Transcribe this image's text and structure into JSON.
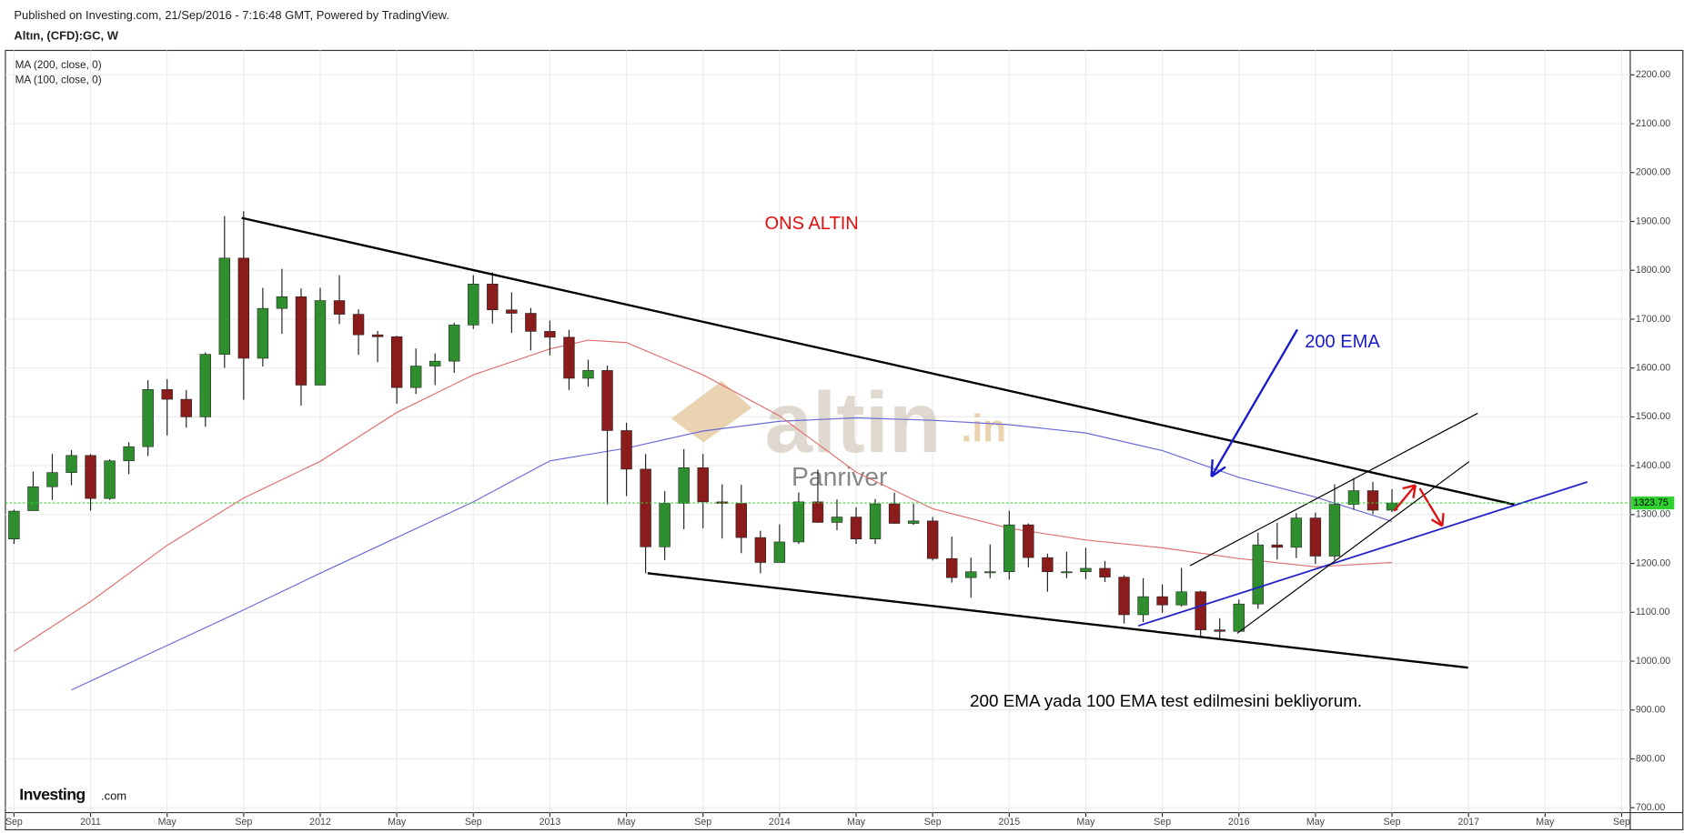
{
  "header": {
    "published": "Published on Investing.com, 21/Sep/2016 - 7:16:48 GMT, Powered by TradingView.",
    "symbol": "Altın, (CFD):GC, W"
  },
  "chart_data": {
    "type": "candlestick",
    "legend": [
      "MA (200, close, 0)",
      "MA (100, close, 0)"
    ],
    "annotations": {
      "title": "ONS ALTIN",
      "ema": "200 EMA",
      "note": "200 EMA yada 100 EMA test edilmesini bekliyorum."
    },
    "watermark": {
      "logo": "altin",
      "logo_suffix": ".in",
      "author": "Panriver",
      "brand": "Investing",
      "brand_suffix": ".com"
    },
    "up_color": "#2f8f2f",
    "down_color": "#8b1c1c",
    "grid": true,
    "last_price": 1323.75,
    "last_price_label": "1323.75",
    "last_price_color": "#2fd12f",
    "xlim": [
      "2010-09",
      "2017-09"
    ],
    "xticks": [
      {
        "value": "2010-09",
        "label": "Sep"
      },
      {
        "value": "2011-01",
        "label": "2011"
      },
      {
        "value": "2011-05",
        "label": "May"
      },
      {
        "value": "2011-09",
        "label": "Sep"
      },
      {
        "value": "2012-01",
        "label": "2012"
      },
      {
        "value": "2012-05",
        "label": "May"
      },
      {
        "value": "2012-09",
        "label": "Sep"
      },
      {
        "value": "2013-01",
        "label": "2013"
      },
      {
        "value": "2013-05",
        "label": "May"
      },
      {
        "value": "2013-09",
        "label": "Sep"
      },
      {
        "value": "2014-01",
        "label": "2014"
      },
      {
        "value": "2014-05",
        "label": "May"
      },
      {
        "value": "2014-09",
        "label": "Sep"
      },
      {
        "value": "2015-01",
        "label": "2015"
      },
      {
        "value": "2015-05",
        "label": "May"
      },
      {
        "value": "2015-09",
        "label": "Sep"
      },
      {
        "value": "2016-01",
        "label": "2016"
      },
      {
        "value": "2016-05",
        "label": "May"
      },
      {
        "value": "2016-09",
        "label": "Sep"
      },
      {
        "value": "2017-01",
        "label": "2017"
      },
      {
        "value": "2017-05",
        "label": "May"
      },
      {
        "value": "2017-09",
        "label": "Sep"
      }
    ],
    "ylim": [
      690,
      2250
    ],
    "yticks": [
      {
        "value": 700,
        "label": "700.00"
      },
      {
        "value": 800,
        "label": "800.00"
      },
      {
        "value": 900,
        "label": "900.00"
      },
      {
        "value": 1000,
        "label": "1000.00"
      },
      {
        "value": 1100,
        "label": "1100.00"
      },
      {
        "value": 1200,
        "label": "1200.00"
      },
      {
        "value": 1300,
        "label": "1300.00"
      },
      {
        "value": 1400,
        "label": "1400.00"
      },
      {
        "value": 1500,
        "label": "1500.00"
      },
      {
        "value": 1600,
        "label": "1600.00"
      },
      {
        "value": 1700,
        "label": "1700.00"
      },
      {
        "value": 1800,
        "label": "1800.00"
      },
      {
        "value": 1900,
        "label": "1900.00"
      },
      {
        "value": 2000,
        "label": "2000.00"
      },
      {
        "value": 2100,
        "label": "2100.00"
      },
      {
        "value": 2200,
        "label": "2200.00"
      }
    ],
    "x": [
      "2010-09",
      "2010-10",
      "2010-11",
      "2010-12",
      "2011-01",
      "2011-02",
      "2011-03",
      "2011-04",
      "2011-05",
      "2011-06",
      "2011-07",
      "2011-08",
      "2011-09",
      "2011-10",
      "2011-11",
      "2011-12",
      "2012-01",
      "2012-02",
      "2012-03",
      "2012-04",
      "2012-05",
      "2012-06",
      "2012-07",
      "2012-08",
      "2012-09",
      "2012-10",
      "2012-11",
      "2012-12",
      "2013-01",
      "2013-02",
      "2013-03",
      "2013-04",
      "2013-05",
      "2013-06",
      "2013-07",
      "2013-08",
      "2013-09",
      "2013-10",
      "2013-11",
      "2013-12",
      "2014-01",
      "2014-02",
      "2014-03",
      "2014-04",
      "2014-05",
      "2014-06",
      "2014-07",
      "2014-08",
      "2014-09",
      "2014-10",
      "2014-11",
      "2014-12",
      "2015-01",
      "2015-02",
      "2015-03",
      "2015-04",
      "2015-05",
      "2015-06",
      "2015-07",
      "2015-08",
      "2015-09",
      "2015-10",
      "2015-11",
      "2015-12",
      "2016-01",
      "2016-02",
      "2016-03",
      "2016-04",
      "2016-05",
      "2016-06",
      "2016-07",
      "2016-08",
      "2016-09"
    ],
    "open": [
      1250,
      1308,
      1357,
      1386,
      1421,
      1333,
      1410,
      1439,
      1556,
      1536,
      1500,
      1628,
      1825,
      1620,
      1722,
      1746,
      1565,
      1738,
      1710,
      1668,
      1664,
      1560,
      1604,
      1614,
      1688,
      1772,
      1719,
      1712,
      1675,
      1663,
      1579,
      1595,
      1472,
      1393,
      1234,
      1323,
      1396,
      1326,
      1323,
      1253,
      1202,
      1244,
      1326,
      1284,
      1295,
      1250,
      1322,
      1282,
      1287,
      1210,
      1171,
      1183,
      1183,
      1279,
      1212,
      1183,
      1183,
      1190,
      1172,
      1095,
      1132,
      1115,
      1142,
      1064,
      1061,
      1117,
      1238,
      1233,
      1293,
      1215,
      1321,
      1349,
      1309
    ],
    "high": [
      1310,
      1388,
      1424,
      1432,
      1424,
      1413,
      1448,
      1575,
      1577,
      1555,
      1632,
      1911,
      1921,
      1764,
      1803,
      1763,
      1764,
      1790,
      1720,
      1676,
      1666,
      1640,
      1630,
      1693,
      1790,
      1796,
      1755,
      1723,
      1697,
      1678,
      1617,
      1605,
      1488,
      1424,
      1348,
      1434,
      1424,
      1362,
      1361,
      1267,
      1280,
      1345,
      1392,
      1331,
      1315,
      1332,
      1345,
      1322,
      1295,
      1255,
      1212,
      1239,
      1308,
      1282,
      1220,
      1224,
      1232,
      1205,
      1176,
      1170,
      1157,
      1191,
      1144,
      1088,
      1126,
      1263,
      1283,
      1303,
      1304,
      1362,
      1375,
      1367,
      1352
    ],
    "low": [
      1240,
      1318,
      1330,
      1360,
      1308,
      1330,
      1383,
      1420,
      1462,
      1478,
      1480,
      1600,
      1535,
      1603,
      1670,
      1523,
      1565,
      1690,
      1627,
      1612,
      1527,
      1547,
      1565,
      1590,
      1680,
      1691,
      1672,
      1636,
      1626,
      1555,
      1562,
      1321,
      1338,
      1180,
      1207,
      1270,
      1272,
      1251,
      1221,
      1180,
      1202,
      1240,
      1283,
      1268,
      1240,
      1240,
      1281,
      1279,
      1206,
      1161,
      1130,
      1170,
      1167,
      1192,
      1142,
      1170,
      1168,
      1162,
      1077,
      1080,
      1099,
      1112,
      1052,
      1046,
      1061,
      1107,
      1208,
      1211,
      1199,
      1207,
      1310,
      1301,
      1305
    ],
    "close": [
      1307,
      1357,
      1386,
      1421,
      1333,
      1410,
      1439,
      1556,
      1536,
      1500,
      1628,
      1825,
      1620,
      1722,
      1746,
      1565,
      1738,
      1710,
      1668,
      1664,
      1560,
      1604,
      1614,
      1688,
      1772,
      1719,
      1712,
      1675,
      1663,
      1579,
      1595,
      1472,
      1393,
      1234,
      1323,
      1396,
      1326,
      1323,
      1253,
      1202,
      1244,
      1326,
      1284,
      1295,
      1250,
      1322,
      1282,
      1287,
      1210,
      1171,
      1183,
      1183,
      1279,
      1212,
      1183,
      1183,
      1190,
      1172,
      1095,
      1132,
      1115,
      1142,
      1064,
      1061,
      1117,
      1238,
      1233,
      1293,
      1215,
      1321,
      1349,
      1309,
      1323.75
    ],
    "series": [
      {
        "name": "MA (200, close, 0)",
        "color": "#6b6bd8",
        "x": [
          "2010-12",
          "2011-09",
          "2012-01",
          "2012-09",
          "2013-01",
          "2013-05",
          "2013-09",
          "2014-01",
          "2014-05",
          "2014-09",
          "2015-01",
          "2015-05",
          "2015-09",
          "2016-01",
          "2016-05",
          "2016-09"
        ],
        "values": [
          941,
          1105,
          1180,
          1326,
          1410,
          1436,
          1471,
          1491,
          1498,
          1493,
          1484,
          1467,
          1431,
          1376,
          1336,
          1286
        ]
      },
      {
        "name": "MA (100, close, 0)",
        "color": "#e07070",
        "x": [
          "2010-09",
          "2011-01",
          "2011-05",
          "2011-09",
          "2012-01",
          "2012-05",
          "2012-09",
          "2013-01",
          "2013-03",
          "2013-05",
          "2013-09",
          "2014-01",
          "2014-05",
          "2014-09",
          "2015-01",
          "2015-05",
          "2015-09",
          "2016-01",
          "2016-05",
          "2016-09"
        ],
        "values": [
          1020,
          1122,
          1237,
          1334,
          1409,
          1509,
          1586,
          1639,
          1657,
          1652,
          1586,
          1502,
          1387,
          1312,
          1272,
          1248,
          1232,
          1210,
          1193,
          1202
        ]
      }
    ]
  }
}
